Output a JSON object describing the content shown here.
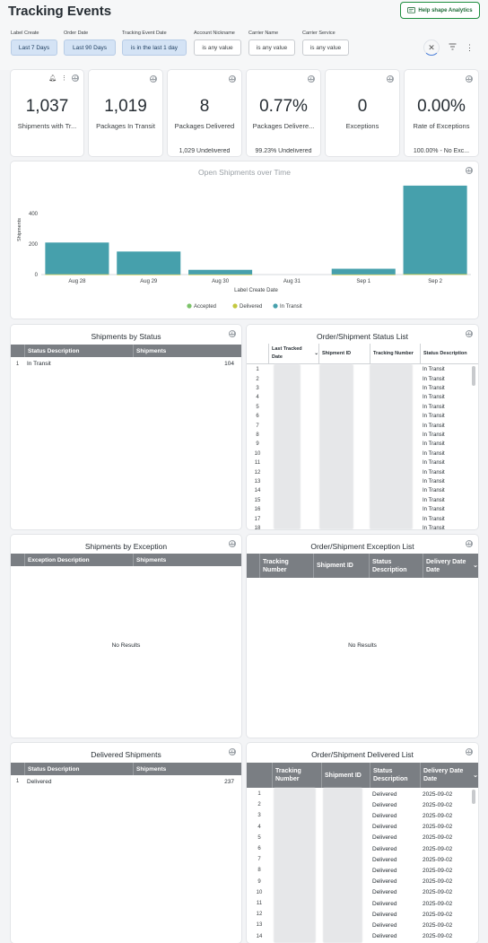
{
  "header": {
    "title": "Tracking Events",
    "help_label": "Help shape Analytics"
  },
  "filters": [
    {
      "label": "Label Create",
      "value": "Last 7 Days",
      "active": true
    },
    {
      "label": "Order Date",
      "value": "Last 90 Days",
      "active": true
    },
    {
      "label": "Tracking Event Date",
      "value": "is in the last 1 day",
      "active": true
    },
    {
      "label": "Account Nickname",
      "value": "is any value",
      "active": false
    },
    {
      "label": "Carrier Name",
      "value": "is any value",
      "active": false
    },
    {
      "label": "Carrier Service",
      "value": "is any value",
      "active": false
    }
  ],
  "kpis": [
    {
      "value": "1,037",
      "label": "Shipments with Tr...",
      "sub": ""
    },
    {
      "value": "1,019",
      "label": "Packages In Transit",
      "sub": ""
    },
    {
      "value": "8",
      "label": "Packages Delivered",
      "sub": "1,029 Undelivered"
    },
    {
      "value": "0.77%",
      "label": "Packages Delivere...",
      "sub": "99.23% Undelivered"
    },
    {
      "value": "0",
      "label": "Exceptions",
      "sub": ""
    },
    {
      "value": "0.00%",
      "label": "Rate of Exceptions",
      "sub": "100.00% - No Exc..."
    }
  ],
  "chart_data": {
    "type": "bar",
    "title": "Open Shipments over Time",
    "xlabel": "Label Create Date",
    "ylabel": "Shipments",
    "categories": [
      "Aug 28",
      "Aug 29",
      "Aug 30",
      "Aug 31",
      "Sep 1",
      "Sep 2"
    ],
    "series": [
      {
        "name": "Accepted",
        "color": "#7cc36a",
        "values": [
          0,
          0,
          0,
          0,
          0,
          0
        ]
      },
      {
        "name": "Delivered",
        "color": "#c3c83e",
        "values": [
          2,
          1,
          1,
          0,
          1,
          3
        ]
      },
      {
        "name": "In Transit",
        "color": "#46a0ac",
        "values": [
          208,
          150,
          30,
          0,
          37,
          580
        ]
      }
    ],
    "ylim": [
      0,
      600
    ],
    "yticks": [
      0,
      200,
      400
    ],
    "stacked": true,
    "grid": false,
    "legend": "bottom-center"
  },
  "status_table": {
    "title": "Shipments by Status",
    "headers": [
      "Status Description",
      "Shipments"
    ],
    "rows": [
      {
        "num": "1",
        "status": "In Transit",
        "count": "104"
      }
    ]
  },
  "status_list": {
    "title": "Order/Shipment Status List",
    "headers": [
      "Last Tracked Date",
      "Shipment ID",
      "Tracking Number",
      "Status Description"
    ],
    "rows": [
      {
        "num": "1",
        "status": "In Transit"
      },
      {
        "num": "2",
        "status": "In Transit"
      },
      {
        "num": "3",
        "status": "In Transit"
      },
      {
        "num": "4",
        "status": "In Transit"
      },
      {
        "num": "5",
        "status": "In Transit"
      },
      {
        "num": "6",
        "status": "In Transit"
      },
      {
        "num": "7",
        "status": "In Transit"
      },
      {
        "num": "8",
        "status": "In Transit"
      },
      {
        "num": "9",
        "status": "In Transit"
      },
      {
        "num": "10",
        "status": "In Transit"
      },
      {
        "num": "11",
        "status": "In Transit"
      },
      {
        "num": "12",
        "status": "In Transit"
      },
      {
        "num": "13",
        "status": "In Transit"
      },
      {
        "num": "14",
        "status": "In Transit"
      },
      {
        "num": "15",
        "status": "In Transit"
      },
      {
        "num": "16",
        "status": "In Transit"
      },
      {
        "num": "17",
        "status": "In Transit"
      },
      {
        "num": "18",
        "status": "In Transit"
      }
    ]
  },
  "exception_table": {
    "title": "Shipments by Exception",
    "headers": [
      "Exception Description",
      "Shipments"
    ],
    "empty": "No Results"
  },
  "exception_list": {
    "title": "Order/Shipment Exception List",
    "headers": [
      "Tracking Number",
      "Shipment ID",
      "Status Description",
      "Delivery Date Date"
    ],
    "empty": "No Results"
  },
  "delivered_table": {
    "title": "Delivered Shipments",
    "headers": [
      "Status Description",
      "Shipments"
    ],
    "rows": [
      {
        "num": "1",
        "status": "Delivered",
        "count": "237"
      }
    ]
  },
  "delivered_list": {
    "title": "Order/Shipment Delivered List",
    "headers": [
      "Tracking Number",
      "Shipment ID",
      "Status Description",
      "Delivery Date Date"
    ],
    "rows": [
      {
        "num": "1",
        "status": "Delivered",
        "date": "2025-09-02"
      },
      {
        "num": "2",
        "status": "Delivered",
        "date": "2025-09-02"
      },
      {
        "num": "3",
        "status": "Delivered",
        "date": "2025-09-02"
      },
      {
        "num": "4",
        "status": "Delivered",
        "date": "2025-09-02"
      },
      {
        "num": "5",
        "status": "Delivered",
        "date": "2025-09-02"
      },
      {
        "num": "6",
        "status": "Delivered",
        "date": "2025-09-02"
      },
      {
        "num": "7",
        "status": "Delivered",
        "date": "2025-09-02"
      },
      {
        "num": "8",
        "status": "Delivered",
        "date": "2025-09-02"
      },
      {
        "num": "9",
        "status": "Delivered",
        "date": "2025-09-02"
      },
      {
        "num": "10",
        "status": "Delivered",
        "date": "2025-09-02"
      },
      {
        "num": "11",
        "status": "Delivered",
        "date": "2025-09-02"
      },
      {
        "num": "12",
        "status": "Delivered",
        "date": "2025-09-02"
      },
      {
        "num": "13",
        "status": "Delivered",
        "date": "2025-09-02"
      },
      {
        "num": "14",
        "status": "Delivered",
        "date": "2025-09-02"
      }
    ]
  }
}
